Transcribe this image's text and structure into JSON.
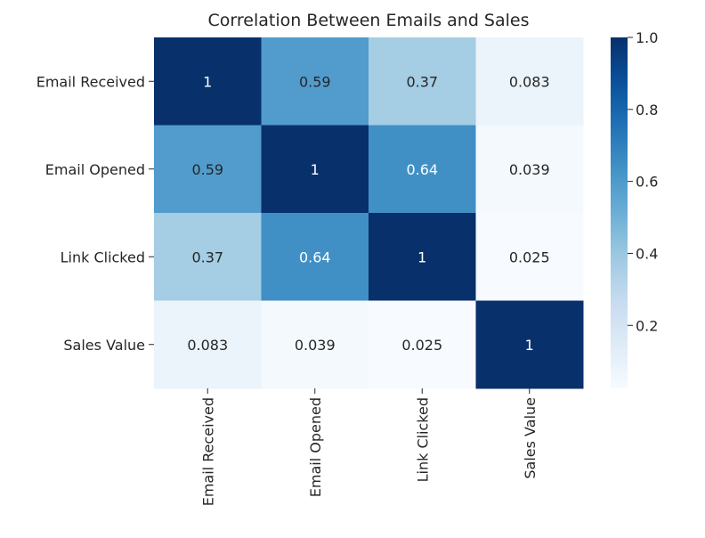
{
  "chart_data": {
    "type": "heatmap",
    "title": "Correlation Between Emails and Sales",
    "xlabel": "",
    "ylabel": "",
    "rows": [
      "Email Received",
      "Email Opened",
      "Link Clicked",
      "Sales Value"
    ],
    "columns": [
      "Email Received",
      "Email Opened",
      "Link Clicked",
      "Sales Value"
    ],
    "values": [
      [
        1,
        0.59,
        0.37,
        0.083
      ],
      [
        0.59,
        1,
        0.64,
        0.039
      ],
      [
        0.37,
        0.64,
        1,
        0.025
      ],
      [
        0.083,
        0.039,
        0.025,
        1
      ]
    ],
    "cell_labels": [
      [
        "1",
        "0.59",
        "0.37",
        "0.083"
      ],
      [
        "0.59",
        "1",
        "0.64",
        "0.039"
      ],
      [
        "0.37",
        "0.64",
        "1",
        "0.025"
      ],
      [
        "0.083",
        "0.039",
        "0.025",
        "1"
      ]
    ],
    "colormap": "Blues",
    "color_range": [
      0.025,
      1
    ],
    "colorbar_ticks": [
      1.0,
      0.8,
      0.6,
      0.4,
      0.2
    ],
    "colorbar_tick_labels": [
      "1.0",
      "0.8",
      "0.6",
      "0.4",
      "0.2"
    ],
    "annotations_visible": true,
    "grid": false,
    "colors": {
      "low": "#f7fbff",
      "high": "#08306b",
      "text_dark": "#262626",
      "text_light": "#ffffff"
    }
  }
}
